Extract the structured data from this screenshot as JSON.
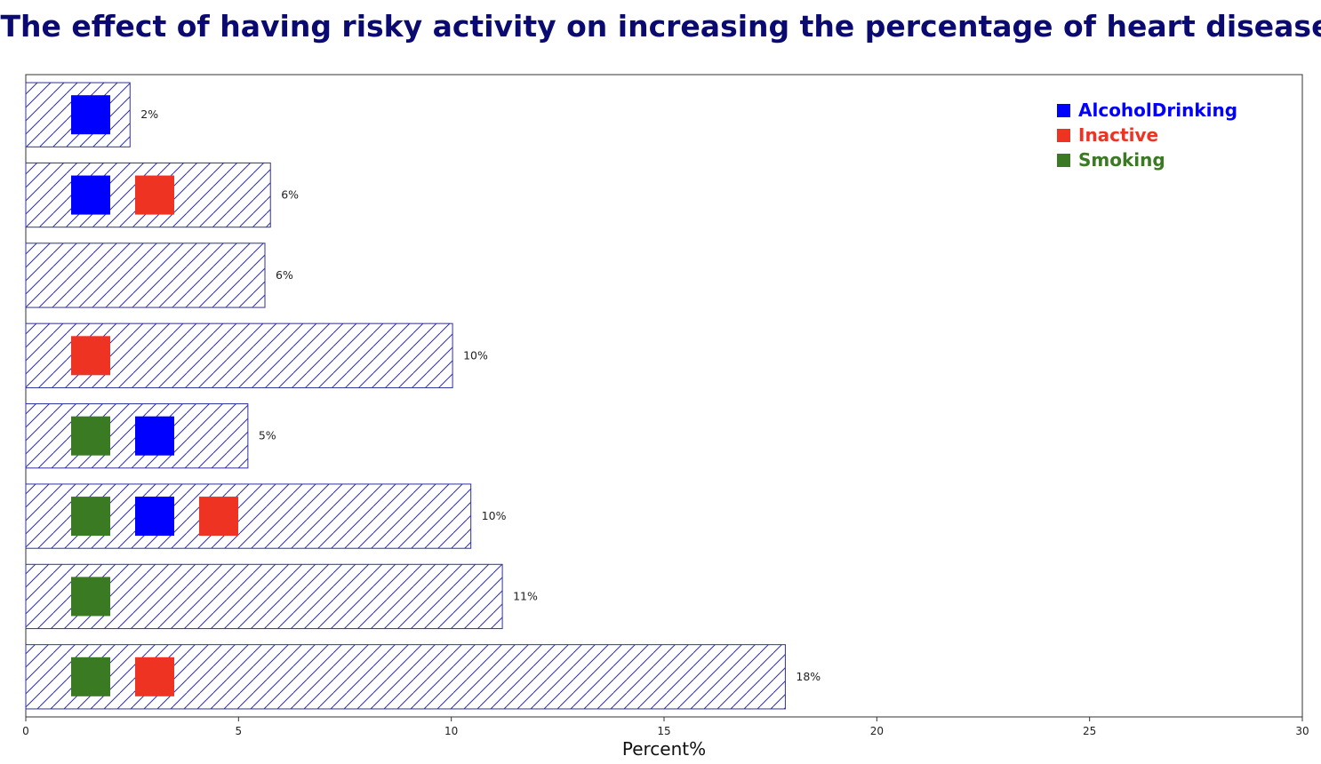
{
  "chart_data": {
    "type": "bar",
    "orientation": "horizontal",
    "title": "The effect of having risky activity on increasing the percentage of heart disease",
    "xlabel": "Percent%",
    "ylabel": "",
    "xlim": [
      0,
      30
    ],
    "xticks": [
      "0",
      "5",
      "10",
      "15",
      "20",
      "25",
      "30"
    ],
    "bar_color": "#3030a0",
    "hatch": "forward-diagonal",
    "grid": false,
    "legend_position": "top-right",
    "legend": [
      {
        "key": "alcohol",
        "label": "AlcoholDrinking",
        "color": "#0000ff"
      },
      {
        "key": "inactive",
        "label": "Inactive",
        "color": "#ee3322"
      },
      {
        "key": "smoking",
        "label": "Smoking",
        "color": "#3a7a22"
      }
    ],
    "bars": [
      {
        "value": 2.45,
        "label": "2%",
        "markers": [
          "alcohol"
        ]
      },
      {
        "value": 5.75,
        "label": "6%",
        "markers": [
          "alcohol",
          "inactive"
        ]
      },
      {
        "value": 5.62,
        "label": "6%",
        "markers": []
      },
      {
        "value": 10.03,
        "label": "10%",
        "markers": [
          "inactive"
        ]
      },
      {
        "value": 5.22,
        "label": "5%",
        "markers": [
          "smoking",
          "alcohol"
        ]
      },
      {
        "value": 10.46,
        "label": "10%",
        "markers": [
          "smoking",
          "alcohol",
          "inactive"
        ]
      },
      {
        "value": 11.2,
        "label": "11%",
        "markers": [
          "smoking"
        ]
      },
      {
        "value": 17.85,
        "label": "18%",
        "markers": [
          "smoking",
          "inactive"
        ]
      }
    ]
  }
}
